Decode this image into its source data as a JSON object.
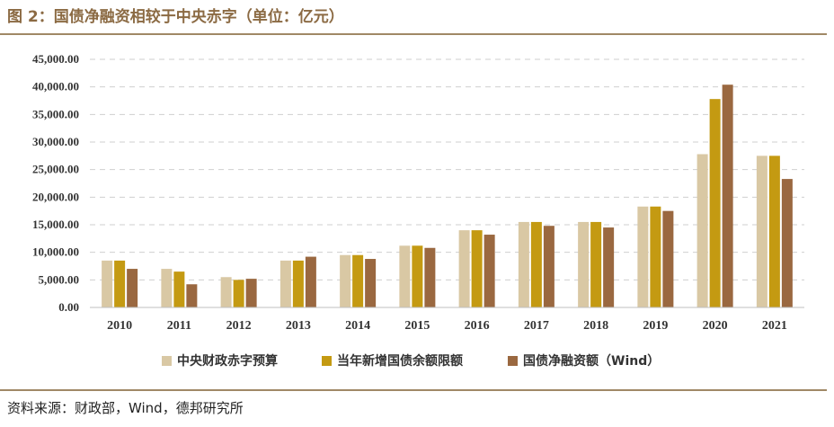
{
  "header": {
    "title": "图 2：国债净融资相较于中央赤字（单位：亿元）"
  },
  "footer": {
    "source": "资料来源：财政部，Wind，德邦研究所"
  },
  "colors": {
    "series": [
      "#D9C8A4",
      "#C49A12",
      "#9A6840"
    ],
    "grid": "#CFCFCF",
    "rule": "#A08866",
    "title": "#8B6A43"
  },
  "chart_data": {
    "type": "bar",
    "title": "国债净融资相较于中央赤字（单位：亿元）",
    "xlabel": "",
    "ylabel": "",
    "ylim": [
      0,
      45000
    ],
    "y_ticks": [
      "0.00",
      "5,000.00",
      "10,000.00",
      "15,000.00",
      "20,000.00",
      "25,000.00",
      "30,000.00",
      "35,000.00",
      "40,000.00",
      "45,000.00"
    ],
    "grid": true,
    "legend_position": "bottom",
    "categories": [
      "2010",
      "2011",
      "2012",
      "2013",
      "2014",
      "2015",
      "2016",
      "2017",
      "2018",
      "2019",
      "2020",
      "2021"
    ],
    "series": [
      {
        "name": "中央财政赤字预算",
        "values": [
          8500,
          7000,
          5500,
          8500,
          9500,
          11200,
          14000,
          15500,
          15500,
          18300,
          27800,
          27500
        ]
      },
      {
        "name": "当年新增国债余额限额",
        "values": [
          8500,
          6500,
          5000,
          8500,
          9500,
          11200,
          14000,
          15500,
          15500,
          18300,
          37800,
          27500
        ]
      },
      {
        "name": "国债净融资额（Wind）",
        "values": [
          7000,
          4200,
          5200,
          9200,
          8800,
          10800,
          13200,
          14800,
          14500,
          17500,
          40400,
          23300
        ]
      }
    ]
  }
}
